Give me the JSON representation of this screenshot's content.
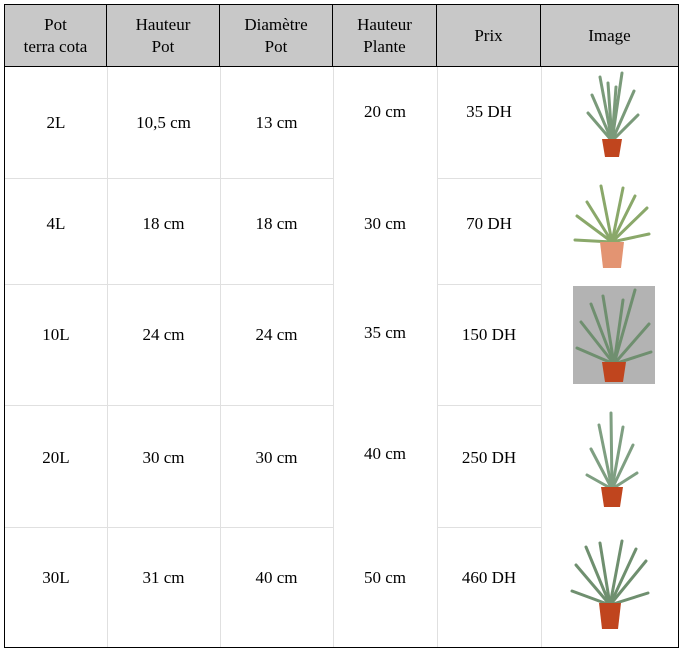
{
  "headers": [
    "Pot\nterra cota",
    "Hauteur\nPot",
    "Diamètre\nPot",
    "Hauteur\nPlante",
    "Prix",
    "Image"
  ],
  "rows": [
    {
      "pot": "2L",
      "hauteur_pot": "10,5 cm",
      "diametre": "13 cm",
      "hauteur_plante": "20 cm",
      "prix": "35 DH"
    },
    {
      "pot": "4L",
      "hauteur_pot": "18 cm",
      "diametre": "18 cm",
      "hauteur_plante": "30 cm",
      "prix": "70 DH"
    },
    {
      "pot": "10L",
      "hauteur_pot": "24 cm",
      "diametre": "24 cm",
      "hauteur_plante": "35 cm",
      "prix": "150 DH"
    },
    {
      "pot": "20L",
      "hauteur_pot": "30 cm",
      "diametre": "30 cm",
      "hauteur_plante": "40 cm",
      "prix": "250 DH"
    },
    {
      "pot": "30L",
      "hauteur_pot": "31 cm",
      "diametre": "40 cm",
      "hauteur_plante": "50 cm",
      "prix": "460 DH"
    }
  ],
  "colors": {
    "header_bg": "#c8c8c8",
    "leaf": "#7a9a7a",
    "pot_terracotta": "#c0451e",
    "pot_light": "#e39472",
    "photo_bg": "#b3b3b3"
  },
  "images": [
    "aloe-plant-icon",
    "aloe-plant-icon",
    "aloe-plant-icon",
    "aloe-plant-icon",
    "aloe-plant-icon"
  ]
}
